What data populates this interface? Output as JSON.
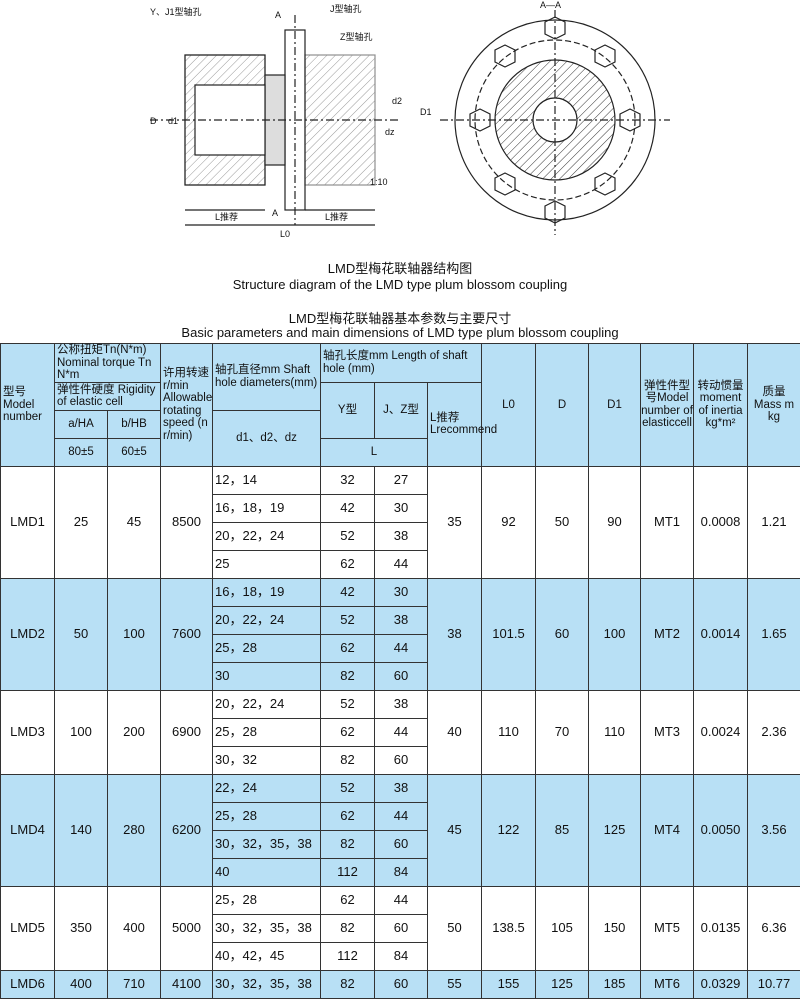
{
  "drawing": {
    "labels": {
      "yj": "Y、J1型轴孔",
      "j": "J型轴孔",
      "z": "Z型轴孔",
      "a": "A",
      "section": "A—A",
      "D": "D",
      "d1": "d1",
      "d2": "d2",
      "dz": "dz",
      "D1": "D1",
      "taper": "1:10",
      "lrec": "L推荐",
      "l0": "L0"
    }
  },
  "captions": {
    "cn": "LMD型梅花联轴器结构图",
    "en": "Structure diagram of the LMD type plum blossom coupling",
    "table_cn": "LMD型梅花联轴器基本参数与主要尺寸",
    "table_en": "Basic parameters and main dimensions of LMD type plum blossom coupling"
  },
  "header": {
    "model": "型号 Model number",
    "torque": "公称扭矩Tn(N*m) Nominal torque Tn N*m",
    "rigidity": "弹性件硬度 Rigidity of elastic cell",
    "a": "a/HA",
    "b": "b/HB",
    "a_val": "80±5",
    "b_val": "60±5",
    "speed": "许用转速 r/min Allowable rotating speed (n r/min)",
    "shaft_dia": "轴孔直径mm Shaft hole diameters(mm)",
    "d": "d1、d2、dz",
    "length": "轴孔长度mm Length of shaft hole (mm)",
    "y": "Y型",
    "jz": "J、Z型",
    "lrec": "L推荐 Lrecommend",
    "L": "L",
    "l0": "L0",
    "D": "D",
    "D1": "D1",
    "elastic": "弹性件型号Model number of elasticcell",
    "inertia": "转动惯量 moment of inertia kg*m²",
    "mass": "质量 Mass m kg"
  },
  "rows": [
    {
      "model": "LMD1",
      "a": "25",
      "b": "45",
      "speed": "8500",
      "sub": [
        [
          "12，14",
          "32",
          "27"
        ],
        [
          "16，18，19",
          "42",
          "30"
        ],
        [
          "20，22，24",
          "52",
          "38"
        ],
        [
          "25",
          "62",
          "44"
        ]
      ],
      "lrec": "35",
      "l0": "92",
      "D": "50",
      "D1": "90",
      "cell": "MT1",
      "inertia": "0.0008",
      "mass": "1.21"
    },
    {
      "model": "LMD2",
      "a": "50",
      "b": "100",
      "speed": "7600",
      "sub": [
        [
          "16，18，19",
          "42",
          "30"
        ],
        [
          "20，22，24",
          "52",
          "38"
        ],
        [
          "25，28",
          "62",
          "44"
        ],
        [
          "30",
          "82",
          "60"
        ]
      ],
      "lrec": "38",
      "l0": "101.5",
      "D": "60",
      "D1": "100",
      "cell": "MT2",
      "inertia": "0.0014",
      "mass": "1.65"
    },
    {
      "model": "LMD3",
      "a": "100",
      "b": "200",
      "speed": "6900",
      "sub": [
        [
          "20，22，24",
          "52",
          "38"
        ],
        [
          "25，28",
          "62",
          "44"
        ],
        [
          "30，32",
          "82",
          "60"
        ]
      ],
      "lrec": "40",
      "l0": "110",
      "D": "70",
      "D1": "110",
      "cell": "MT3",
      "inertia": "0.0024",
      "mass": "2.36"
    },
    {
      "model": "LMD4",
      "a": "140",
      "b": "280",
      "speed": "6200",
      "sub": [
        [
          "22，24",
          "52",
          "38"
        ],
        [
          "25，28",
          "62",
          "44"
        ],
        [
          "30，32，35，38",
          "82",
          "60"
        ],
        [
          "40",
          "112",
          "84"
        ]
      ],
      "lrec": "45",
      "l0": "122",
      "D": "85",
      "D1": "125",
      "cell": "MT4",
      "inertia": "0.0050",
      "mass": "3.56"
    },
    {
      "model": "LMD5",
      "a": "350",
      "b": "400",
      "speed": "5000",
      "sub": [
        [
          "25，28",
          "62",
          "44"
        ],
        [
          "30，32，35，38",
          "82",
          "60"
        ],
        [
          "40，42，45",
          "112",
          "84"
        ]
      ],
      "lrec": "50",
      "l0": "138.5",
      "D": "105",
      "D1": "150",
      "cell": "MT5",
      "inertia": "0.0135",
      "mass": "6.36"
    },
    {
      "model": "LMD6",
      "a": "400",
      "b": "710",
      "speed": "4100",
      "sub": [
        [
          "30，32，35，38",
          "82",
          "60"
        ]
      ],
      "lrec": "55",
      "l0": "155",
      "D": "125",
      "D1": "185",
      "cell": "MT6",
      "inertia": "0.0329",
      "mass": "10.77"
    }
  ],
  "colors": {
    "header_bg": "#b8e0f5",
    "band_bg": "#b8e0f5"
  }
}
